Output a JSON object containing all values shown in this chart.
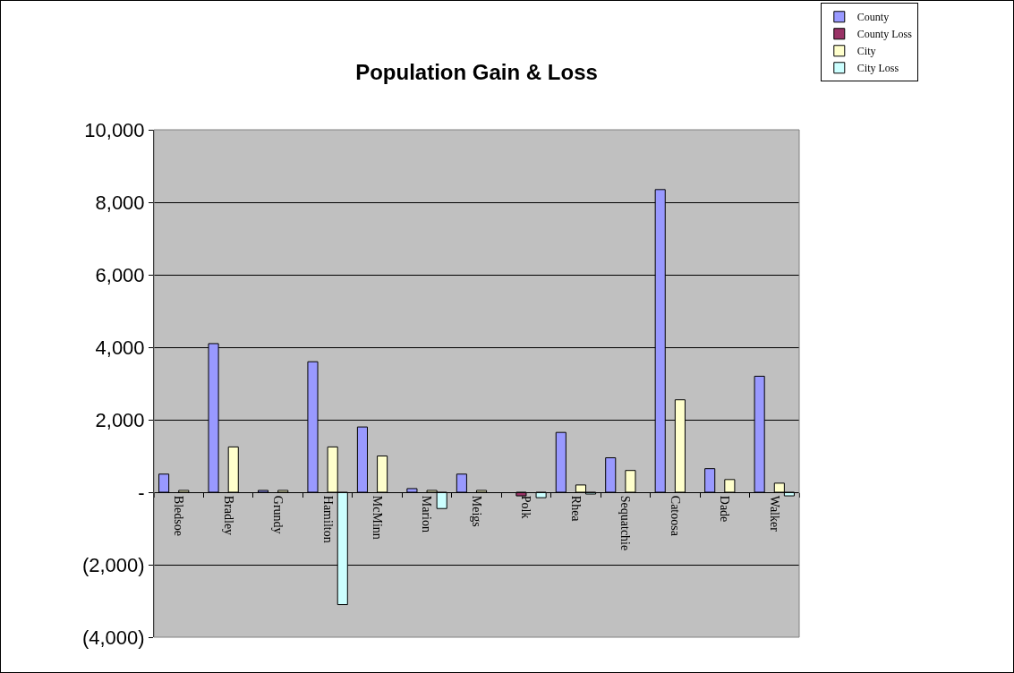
{
  "chart_data": {
    "type": "bar",
    "title": "Population Gain & Loss",
    "categories": [
      "Bledsoe",
      "Bradley",
      "Grundy",
      "Hamilton",
      "McMinn",
      "Marion",
      "Meigs",
      "Polk",
      "Rhea",
      "Sequatchie",
      "Catoosa",
      "Dade",
      "Walker"
    ],
    "series": [
      {
        "name": "County",
        "color": "#9999ff",
        "values": [
          500,
          4100,
          50,
          3600,
          1800,
          100,
          500,
          null,
          1650,
          950,
          8350,
          650,
          3200
        ]
      },
      {
        "name": "County Loss",
        "color": "#993366",
        "values": [
          null,
          null,
          null,
          null,
          null,
          null,
          null,
          -100,
          null,
          null,
          null,
          null,
          null
        ]
      },
      {
        "name": "City",
        "color": "#ffffcc",
        "values": [
          50,
          1250,
          50,
          1250,
          1000,
          50,
          50,
          null,
          200,
          600,
          2550,
          350,
          250
        ]
      },
      {
        "name": "City Loss",
        "color": "#ccffff",
        "values": [
          null,
          null,
          null,
          -3100,
          null,
          -450,
          null,
          -150,
          -50,
          null,
          null,
          null,
          -100
        ]
      }
    ],
    "ylim": [
      -4000,
      10000
    ],
    "yticks": [
      {
        "value": -4000,
        "label": "(4,000)"
      },
      {
        "value": -2000,
        "label": "(2,000)"
      },
      {
        "value": 0,
        "label": "-"
      },
      {
        "value": 2000,
        "label": "2,000"
      },
      {
        "value": 4000,
        "label": "4,000"
      },
      {
        "value": 6000,
        "label": "6,000"
      },
      {
        "value": 8000,
        "label": "8,000"
      },
      {
        "value": 10000,
        "label": "10,000"
      }
    ],
    "grid": "y",
    "legend": "top right"
  }
}
